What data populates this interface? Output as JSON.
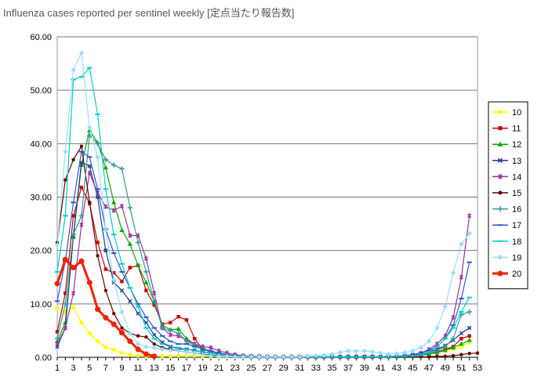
{
  "page": {
    "title": "Influenza cases reported per sentinel weekly [定点当たり報告数]"
  },
  "chart_data": {
    "type": "line",
    "title": "Influenza cases reported per sentinel weekly [定点当たり報告数]",
    "xlabel": "",
    "ylabel": "",
    "xlim": [
      1,
      53
    ],
    "ylim": [
      0,
      60
    ],
    "x_ticks": [
      1,
      3,
      5,
      7,
      9,
      11,
      13,
      15,
      17,
      19,
      21,
      23,
      25,
      27,
      29,
      31,
      33,
      35,
      37,
      39,
      41,
      43,
      45,
      47,
      49,
      51,
      53
    ],
    "y_ticks": [
      "0.00",
      "10.00",
      "20.00",
      "30.00",
      "40.00",
      "50.00",
      "60.00"
    ],
    "grid": "horizontal",
    "legend_position": "right",
    "series": [
      {
        "name": "10",
        "color": "#ffff00",
        "marker": "diamond",
        "x": [
          1,
          2,
          3,
          4,
          5,
          6,
          7,
          8,
          9,
          10,
          11,
          12,
          13,
          14,
          15,
          16,
          17,
          18,
          19,
          20,
          21,
          22,
          23,
          24,
          25,
          26,
          27,
          28,
          29,
          30,
          31,
          32,
          33,
          34,
          35,
          36,
          37,
          38,
          39,
          40,
          41,
          42,
          43,
          44,
          45,
          46,
          47,
          48,
          49,
          50,
          51,
          52
        ],
        "values": [
          9.2,
          8.5,
          9.3,
          6.5,
          4.5,
          3.0,
          1.9,
          1.4,
          0.8,
          0.5,
          0.3,
          0.2,
          0.2,
          0.2,
          0.2,
          0.3,
          0.3,
          0.3,
          0.2,
          0.2,
          0.1,
          0.1,
          0.1,
          0.1,
          0.1,
          0.1,
          0.1,
          0.1,
          0.1,
          0.1,
          0.1,
          0.1,
          0.1,
          0.1,
          0.1,
          0.1,
          0.1,
          0.1,
          0.1,
          0.1,
          0.1,
          0.1,
          0.2,
          0.2,
          0.3,
          0.5,
          0.8,
          1.0,
          1.2,
          1.5,
          2.0,
          2.8
        ]
      },
      {
        "name": "11",
        "color": "#cc0000",
        "marker": "square",
        "x": [
          1,
          2,
          3,
          4,
          5,
          6,
          7,
          8,
          9,
          10,
          11,
          12,
          13,
          14,
          15,
          16,
          17,
          18,
          19,
          20,
          21,
          22,
          23,
          24,
          25,
          26,
          27,
          28,
          29,
          30,
          31,
          32,
          33,
          34,
          35,
          36,
          37,
          38,
          39,
          40,
          41,
          42,
          43,
          44,
          45,
          46,
          47,
          48,
          49,
          50,
          51,
          52
        ],
        "values": [
          4.8,
          12.0,
          26.5,
          31.8,
          28.8,
          21.5,
          16.5,
          15.8,
          14.2,
          16.8,
          17.2,
          12.5,
          9.8,
          6.2,
          6.5,
          7.6,
          7.0,
          3.5,
          1.5,
          1.0,
          0.6,
          0.4,
          0.3,
          0.2,
          0.2,
          0.1,
          0.1,
          0.1,
          0.1,
          0.1,
          0.1,
          0.1,
          0.1,
          0.1,
          0.1,
          0.1,
          0.1,
          0.1,
          0.1,
          0.1,
          0.1,
          0.1,
          0.2,
          0.2,
          0.3,
          0.4,
          0.6,
          1.0,
          1.5,
          2.0,
          3.5,
          4.0
        ]
      },
      {
        "name": "12",
        "color": "#00aa00",
        "marker": "triangle",
        "x": [
          1,
          2,
          3,
          4,
          5,
          6,
          7,
          8,
          9,
          10,
          11,
          12,
          13,
          14,
          15,
          16,
          17,
          18,
          19,
          20,
          21,
          22,
          23,
          24,
          25,
          26,
          27,
          28,
          29,
          30,
          31,
          32,
          33,
          34,
          35,
          36,
          37,
          38,
          39,
          40,
          41,
          42,
          43,
          44,
          45,
          46,
          47,
          48,
          49,
          50,
          51,
          52
        ],
        "values": [
          3.0,
          6.5,
          22.5,
          36.0,
          42.5,
          40.2,
          35.5,
          29.0,
          23.8,
          21.2,
          17.2,
          14.0,
          10.5,
          6.0,
          5.2,
          5.3,
          3.5,
          2.5,
          1.5,
          1.0,
          0.6,
          0.4,
          0.3,
          0.2,
          0.2,
          0.1,
          0.1,
          0.1,
          0.1,
          0.1,
          0.1,
          0.1,
          0.1,
          0.1,
          0.1,
          0.1,
          0.1,
          0.1,
          0.1,
          0.1,
          0.1,
          0.1,
          0.2,
          0.2,
          0.3,
          0.4,
          0.6,
          0.9,
          1.3,
          1.8,
          2.5,
          3.2
        ]
      },
      {
        "name": "13",
        "color": "#1c3c8c",
        "marker": "x",
        "x": [
          1,
          2,
          3,
          4,
          5,
          6,
          7,
          8,
          9,
          10,
          11,
          12,
          13,
          14,
          15,
          16,
          17,
          18,
          19,
          20,
          21,
          22,
          23,
          24,
          25,
          26,
          27,
          28,
          29,
          30,
          31,
          32,
          33,
          34,
          35,
          36,
          37,
          38,
          39,
          40,
          41,
          42,
          43,
          44,
          45,
          46,
          47,
          48,
          49,
          50,
          51,
          52
        ],
        "values": [
          2.0,
          5.5,
          22.8,
          36.5,
          35.8,
          30.0,
          20.0,
          14.0,
          12.5,
          10.5,
          8.2,
          6.5,
          4.2,
          2.8,
          2.0,
          1.6,
          1.5,
          1.3,
          1.0,
          0.8,
          0.5,
          0.3,
          0.2,
          0.2,
          0.1,
          0.1,
          0.1,
          0.1,
          0.1,
          0.1,
          0.1,
          0.1,
          0.1,
          0.1,
          0.1,
          0.1,
          0.1,
          0.1,
          0.1,
          0.1,
          0.1,
          0.2,
          0.2,
          0.3,
          0.4,
          0.6,
          1.0,
          1.5,
          2.2,
          3.2,
          4.5,
          5.5
        ]
      },
      {
        "name": "14",
        "color": "#993399",
        "marker": "star",
        "x": [
          1,
          2,
          3,
          4,
          5,
          6,
          7,
          8,
          9,
          10,
          11,
          12,
          13,
          14,
          15,
          16,
          17,
          18,
          19,
          20,
          21,
          22,
          23,
          24,
          25,
          26,
          27,
          28,
          29,
          30,
          31,
          32,
          33,
          34,
          35,
          36,
          37,
          38,
          39,
          40,
          41,
          42,
          43,
          44,
          45,
          46,
          47,
          48,
          49,
          50,
          51,
          52
        ],
        "values": [
          2.5,
          5.5,
          12.0,
          24.8,
          34.5,
          30.8,
          28.2,
          27.5,
          28.3,
          22.8,
          22.8,
          18.5,
          12.0,
          5.5,
          4.2,
          4.0,
          3.2,
          2.5,
          2.0,
          1.8,
          1.2,
          0.8,
          0.5,
          0.3,
          0.2,
          0.2,
          0.1,
          0.1,
          0.1,
          0.1,
          0.1,
          0.1,
          0.1,
          0.1,
          0.1,
          0.1,
          0.1,
          0.1,
          0.1,
          0.1,
          0.1,
          0.2,
          0.2,
          0.3,
          0.5,
          0.8,
          1.5,
          2.5,
          4.0,
          7.5,
          15.0,
          26.5
        ]
      },
      {
        "name": "15",
        "color": "#660000",
        "marker": "circle",
        "x": [
          1,
          2,
          3,
          4,
          5,
          6,
          7,
          8,
          9,
          10,
          11,
          12,
          13,
          14,
          15,
          16,
          17,
          18,
          19,
          20,
          21,
          22,
          23,
          24,
          25,
          26,
          27,
          28,
          29,
          30,
          31,
          32,
          33,
          34,
          35,
          36,
          37,
          38,
          39,
          40,
          41,
          42,
          43,
          44,
          45,
          46,
          47,
          48,
          49,
          50,
          51,
          52,
          53
        ],
        "values": [
          21.5,
          33.2,
          37.0,
          39.5,
          29.0,
          19.0,
          12.5,
          8.2,
          5.5,
          4.5,
          4.0,
          3.8,
          2.5,
          1.8,
          1.5,
          1.2,
          1.0,
          0.8,
          0.6,
          0.4,
          0.3,
          0.2,
          0.2,
          0.1,
          0.1,
          0.1,
          0.1,
          0.1,
          0.1,
          0.1,
          0.1,
          0.1,
          0.1,
          0.1,
          0.1,
          0.1,
          0.1,
          0.1,
          0.1,
          0.1,
          0.1,
          0.1,
          0.1,
          0.1,
          0.1,
          0.1,
          0.1,
          0.2,
          0.2,
          0.3,
          0.5,
          0.7,
          0.8
        ]
      },
      {
        "name": "16",
        "color": "#339999",
        "marker": "plus",
        "x": [
          1,
          2,
          3,
          4,
          5,
          6,
          7,
          8,
          9,
          10,
          11,
          12,
          13,
          14,
          15,
          16,
          17,
          18,
          19,
          20,
          21,
          22,
          23,
          24,
          25,
          26,
          27,
          28,
          29,
          30,
          31,
          32,
          33,
          34,
          35,
          36,
          37,
          38,
          39,
          40,
          41,
          42,
          43,
          44,
          45,
          46,
          47,
          48,
          49,
          50,
          51,
          52
        ],
        "values": [
          3.5,
          10.0,
          23.0,
          26.5,
          41.5,
          40.0,
          37.0,
          36.0,
          35.3,
          28.0,
          21.5,
          16.0,
          10.5,
          5.5,
          5.0,
          4.5,
          3.0,
          2.2,
          1.5,
          1.0,
          0.6,
          0.4,
          0.3,
          0.2,
          0.2,
          0.1,
          0.1,
          0.1,
          0.1,
          0.1,
          0.1,
          0.1,
          0.1,
          0.1,
          0.1,
          0.1,
          0.1,
          0.1,
          0.1,
          0.1,
          0.1,
          0.1,
          0.2,
          0.2,
          0.3,
          0.5,
          0.8,
          1.2,
          2.0,
          3.5,
          8.0,
          8.5
        ]
      },
      {
        "name": "17",
        "color": "#3355cc",
        "marker": "dash",
        "x": [
          1,
          2,
          3,
          4,
          5,
          6,
          7,
          8,
          9,
          10,
          11,
          12,
          13,
          14,
          15,
          16,
          17,
          18,
          19,
          20,
          21,
          22,
          23,
          24,
          25,
          26,
          27,
          28,
          29,
          30,
          31,
          32,
          33,
          34,
          35,
          36,
          37,
          38,
          39,
          40,
          41,
          42,
          43,
          44,
          45,
          46,
          47,
          48,
          49,
          50,
          51,
          52
        ],
        "values": [
          10.5,
          18.0,
          29.0,
          38.5,
          37.5,
          31.5,
          24.0,
          19.5,
          16.0,
          13.0,
          10.0,
          7.5,
          5.5,
          4.0,
          3.0,
          2.5,
          2.5,
          2.0,
          1.6,
          1.2,
          0.8,
          0.5,
          0.3,
          0.2,
          0.2,
          0.1,
          0.1,
          0.1,
          0.1,
          0.1,
          0.1,
          0.1,
          0.1,
          0.1,
          0.1,
          0.1,
          0.1,
          0.1,
          0.1,
          0.1,
          0.1,
          0.2,
          0.2,
          0.3,
          0.5,
          0.8,
          1.3,
          2.0,
          3.5,
          6.0,
          11.0,
          17.8
        ]
      },
      {
        "name": "18",
        "color": "#00cccc",
        "marker": "dash",
        "x": [
          1,
          2,
          3,
          4,
          5,
          6,
          7,
          8,
          9,
          10,
          11,
          12,
          13,
          14,
          15,
          16,
          17,
          18,
          19,
          20,
          21,
          22,
          23,
          24,
          25,
          26,
          27,
          28,
          29,
          30,
          31,
          32,
          33,
          34,
          35,
          36,
          37,
          38,
          39,
          40,
          41,
          42,
          43,
          44,
          45,
          46,
          47,
          48,
          49,
          50,
          51,
          52
        ],
        "values": [
          16.0,
          26.5,
          52.0,
          52.5,
          54.2,
          45.5,
          31.5,
          23.0,
          17.5,
          13.0,
          9.5,
          5.5,
          3.5,
          2.5,
          2.0,
          1.8,
          1.5,
          1.2,
          1.0,
          0.7,
          0.5,
          0.3,
          0.2,
          0.2,
          0.1,
          0.1,
          0.1,
          0.1,
          0.1,
          0.1,
          0.1,
          0.1,
          0.1,
          0.1,
          0.1,
          0.1,
          0.1,
          0.1,
          0.1,
          0.1,
          0.1,
          0.1,
          0.2,
          0.2,
          0.3,
          0.5,
          1.0,
          2.0,
          3.5,
          5.5,
          8.5,
          11.2
        ]
      },
      {
        "name": "19",
        "color": "#99ddff",
        "marker": "diamond",
        "x": [
          1,
          2,
          3,
          4,
          5,
          6,
          7,
          8,
          9,
          10,
          11,
          12,
          13,
          14,
          15,
          16,
          17,
          18,
          19,
          20,
          21,
          22,
          23,
          24,
          25,
          26,
          27,
          28,
          29,
          30,
          31,
          32,
          33,
          34,
          35,
          36,
          37,
          38,
          39,
          40,
          41,
          42,
          43,
          44,
          45,
          46,
          47,
          48,
          49,
          50,
          51,
          52
        ],
        "values": [
          21.0,
          38.5,
          53.8,
          57.0,
          43.0,
          37.5,
          23.8,
          14.5,
          8.5,
          4.5,
          2.5,
          2.0,
          1.8,
          1.5,
          1.3,
          1.2,
          1.0,
          0.8,
          0.5,
          0.3,
          0.2,
          0.2,
          0.1,
          0.1,
          0.1,
          0.1,
          0.1,
          0.1,
          0.1,
          0.1,
          0.1,
          0.2,
          0.3,
          0.4,
          0.6,
          0.9,
          1.2,
          1.2,
          1.2,
          1.0,
          0.8,
          0.6,
          0.7,
          0.9,
          1.2,
          1.8,
          3.0,
          5.5,
          9.5,
          15.8,
          21.2,
          23.2
        ]
      },
      {
        "name": "20",
        "color": "#ee2200",
        "marker": "circle",
        "x": [
          1,
          2,
          3,
          4,
          5,
          6,
          7,
          8,
          9,
          10,
          11,
          12,
          13
        ],
        "values": [
          13.8,
          18.3,
          16.8,
          18.0,
          14.0,
          9.0,
          7.4,
          6.2,
          4.6,
          3.0,
          1.5,
          0.6,
          0.2
        ]
      }
    ]
  }
}
